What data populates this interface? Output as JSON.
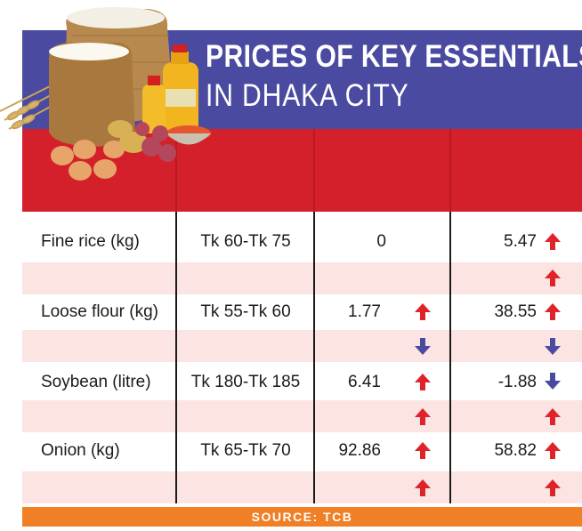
{
  "header": {
    "title_line1": "PRICES OF KEY ESSENTIALS",
    "title_line2": "IN DHAKA CITY"
  },
  "table": {
    "columns": [
      "",
      "",
      "",
      ""
    ],
    "rows": [
      {
        "item": "Fine rice (kg)",
        "price": "Tk 60-Tk 75",
        "change_col3": "0",
        "change_col4": "5.47"
      },
      {
        "item": "Loose flour (kg)",
        "price": "Tk 55-Tk 60",
        "change_col3": "1.77",
        "change_col4": "38.55"
      },
      {
        "item": "Soybean (litre)",
        "price": "Tk 180-Tk 185",
        "change_col3": "6.41",
        "change_col4": "-1.88"
      },
      {
        "item": "Onion (kg)",
        "price": "Tk 65-Tk 70",
        "change_col3": "92.86",
        "change_col4": "58.82"
      }
    ]
  },
  "footer": {
    "source": "SOURCE: TCB"
  },
  "colors": {
    "banner": "#4a4aa0",
    "header_band": "#d4202b",
    "pink_row": "#fbe4e2",
    "up_arrow": "#e0232b",
    "down_arrow": "#4a4aa0",
    "footer": "#f07f25"
  }
}
